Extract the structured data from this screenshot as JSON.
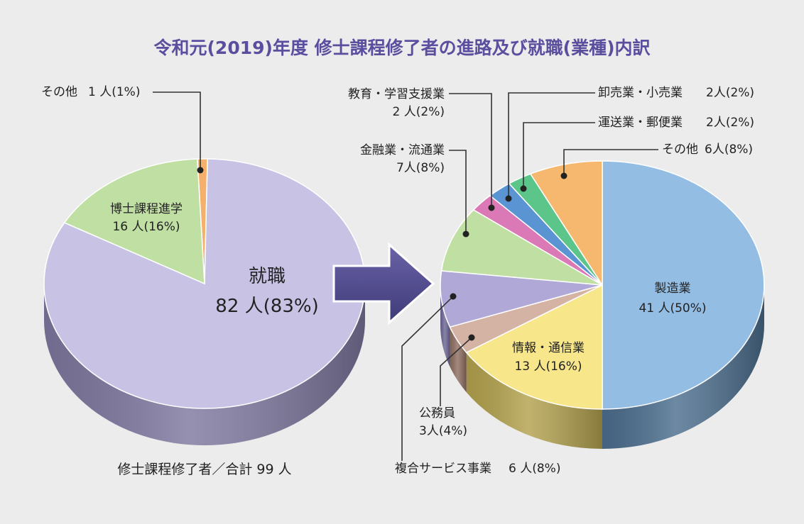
{
  "title": "令和元(2019)年度 修士課程修了者の進路及び就職(業種)内訳",
  "chart_data": [
    {
      "type": "pie",
      "caption": "修士課程修了者／合計 99 人",
      "slices": [
        {
          "name": "就職",
          "count_label": "82 人(83%)",
          "value": 82,
          "percent": 83,
          "color": "#c8c3e4",
          "side": "#7e789f"
        },
        {
          "name": "博士課程進学",
          "count_label": "16 人(16%)",
          "value": 16,
          "percent": 16,
          "color": "#bfdfa3",
          "side": "#7f9968"
        },
        {
          "name": "その他",
          "count_label": "1 人(1%)",
          "value": 1,
          "percent": 1,
          "color": "#f5b06c",
          "side": "#b07a44"
        }
      ]
    },
    {
      "type": "pie",
      "slices": [
        {
          "name": "製造業",
          "count_label": "41 人(50%)",
          "value": 41,
          "percent": 50,
          "color": "#94bde4",
          "side": "#4c6e8e"
        },
        {
          "name": "情報・通信業",
          "count_label": "13 人(16%)",
          "value": 13,
          "percent": 16,
          "color": "#f7e68a",
          "side": "#b3a24e"
        },
        {
          "name": "公務員",
          "count_label": "3人(4%)",
          "value": 3,
          "percent": 4,
          "color": "#d4b2a4",
          "side": "#8f6f62"
        },
        {
          "name": "複合サービス事業",
          "count_label": "6 人(8%)",
          "value": 6,
          "percent": 8,
          "color": "#b0a9d8",
          "side": "#6e6896"
        },
        {
          "name": "金融業・流通業",
          "count_label": "7人(8%)",
          "value": 7,
          "percent": 8,
          "color": "#bfdfa3",
          "side": "#7f9968"
        },
        {
          "name": "教育・学習支援業",
          "count_label": "2 人(2%)",
          "value": 2,
          "percent": 2,
          "color": "#db78b6",
          "side": "#92467a"
        },
        {
          "name": "卸売業・小売業",
          "count_label": "2人(2%)",
          "value": 2,
          "percent": 2,
          "color": "#5a94d2",
          "side": "#355d88"
        },
        {
          "name": "運送業・郵便業",
          "count_label": "2人(2%)",
          "value": 2,
          "percent": 2,
          "color": "#5cc58a",
          "side": "#347e55"
        },
        {
          "name": "その他",
          "count_label": "6人(8%)",
          "value": 6,
          "percent": 8,
          "color": "#f5b86e",
          "side": "#b07d44"
        }
      ]
    }
  ],
  "colors": {
    "title": "#5a4e9e",
    "background": "#ececec",
    "arrow": "#4e4a86",
    "leader": "#333333",
    "text": "#222222"
  }
}
